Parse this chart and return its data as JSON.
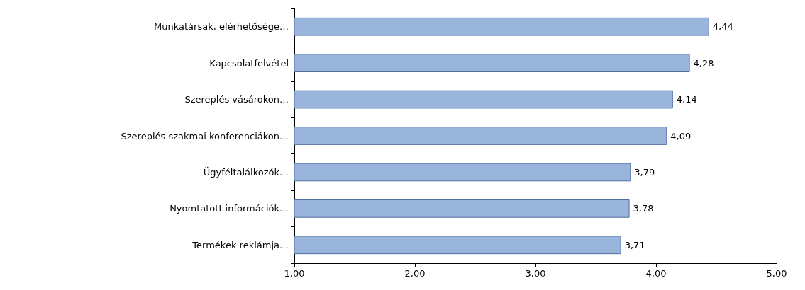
{
  "chart_data": {
    "type": "bar",
    "orientation": "horizontal",
    "categories": [
      "Munkatársak, elérhetősége…",
      "Kapcsolatfelvétel",
      "Szereplés vásárokon…",
      "Szereplés szakmai konferenciákon…",
      "Ügyféltalálkozók…",
      "Nyomtatott információk…",
      "Termékek reklámja…"
    ],
    "values": [
      4.44,
      4.28,
      4.14,
      4.09,
      3.79,
      3.78,
      3.71
    ],
    "value_labels": [
      "4,44",
      "4,28",
      "4,14",
      "4,09",
      "3,79",
      "3,78",
      "3,71"
    ],
    "color": "#9ab5dc",
    "xlim": [
      1,
      5
    ],
    "xticks": [
      {
        "value": 1,
        "label": "1,00"
      },
      {
        "value": 2,
        "label": "2,00"
      },
      {
        "value": 3,
        "label": "3,00"
      },
      {
        "value": 4,
        "label": "4,00"
      },
      {
        "value": 5,
        "label": "5,00"
      }
    ],
    "grid": false
  }
}
